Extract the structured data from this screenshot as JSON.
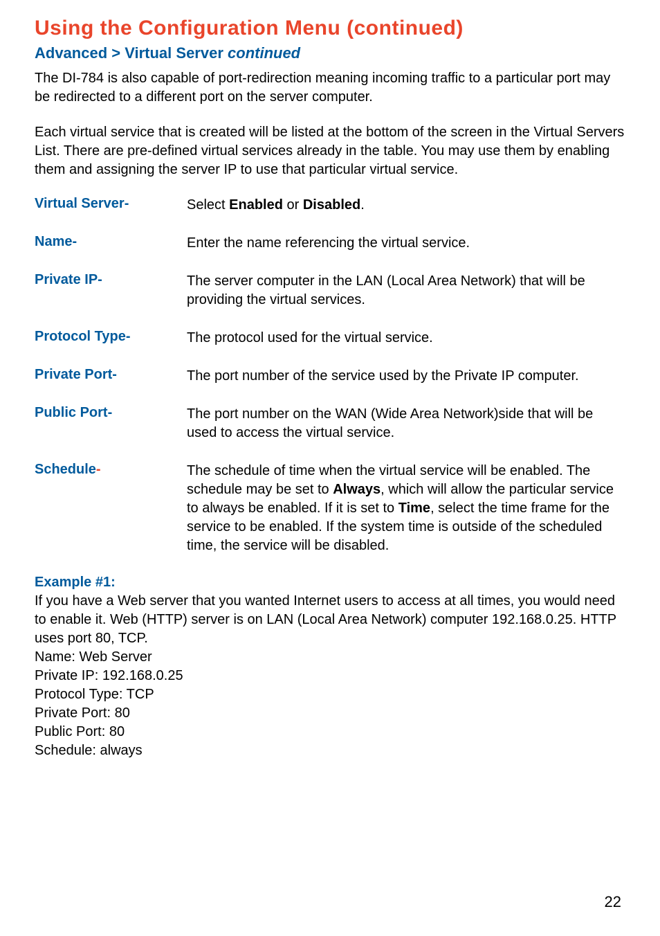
{
  "title": "Using the Configuration Menu (continued)",
  "subtitle_prefix": "Advanced > Virtual Server ",
  "subtitle_italic": "continued",
  "para1": "The DI-784 is also capable of port-redirection meaning incoming traffic to a particular port may be redirected to a different port on the server computer.",
  "para2": "Each virtual service that is created will be listed at the bottom of the screen in the Virtual Servers List. There are pre-defined virtual services already in the table. You may use them by enabling them and assigning the server IP to use that particular virtual service.",
  "defs": {
    "virtual_server": {
      "term": "Virtual Server-",
      "pre": "Select ",
      "b1": "Enabled",
      "mid": " or ",
      "b2": "Disabled",
      "post": "."
    },
    "name": {
      "term": "Name-",
      "text": "Enter the name referencing the virtual service."
    },
    "private_ip": {
      "term": "Private IP-",
      "text": "The server computer in the LAN (Local Area Network) that will be providing the virtual services."
    },
    "protocol_type": {
      "term": "Protocol Type-",
      "text": "The protocol used for the virtual service."
    },
    "private_port": {
      "term": "Private Port-",
      "text": "The port number of the service used by the Private IP computer."
    },
    "public_port": {
      "term": "Public Port-",
      "text": "The port number on the WAN (Wide Area Network)side that will be used to access the virtual service."
    },
    "schedule": {
      "term_main": "Schedule",
      "term_dash": "-",
      "p1": "The schedule of time when the virtual service will be enabled. The schedule may be set to ",
      "b1": "Always",
      "p2": ", which will allow the particular service to always be enabled. If it is set to ",
      "b2": "Time",
      "p3": ", select the time frame for the service to be enabled. If the system time is outside of the scheduled time, the service will be disabled."
    }
  },
  "example": {
    "heading": "Example #1:",
    "intro": "If you have a Web server that you wanted Internet users to access at all times, you would need to enable it. Web (HTTP) server is on LAN (Local Area Network) computer 192.168.0.25. HTTP uses port 80, TCP.",
    "l1": "Name: Web Server",
    "l2": "Private IP: 192.168.0.25",
    "l3": "Protocol Type: TCP",
    "l4": "Private Port: 80",
    "l5": "Public Port: 80",
    "l6": "Schedule: always"
  },
  "page_number": "22"
}
